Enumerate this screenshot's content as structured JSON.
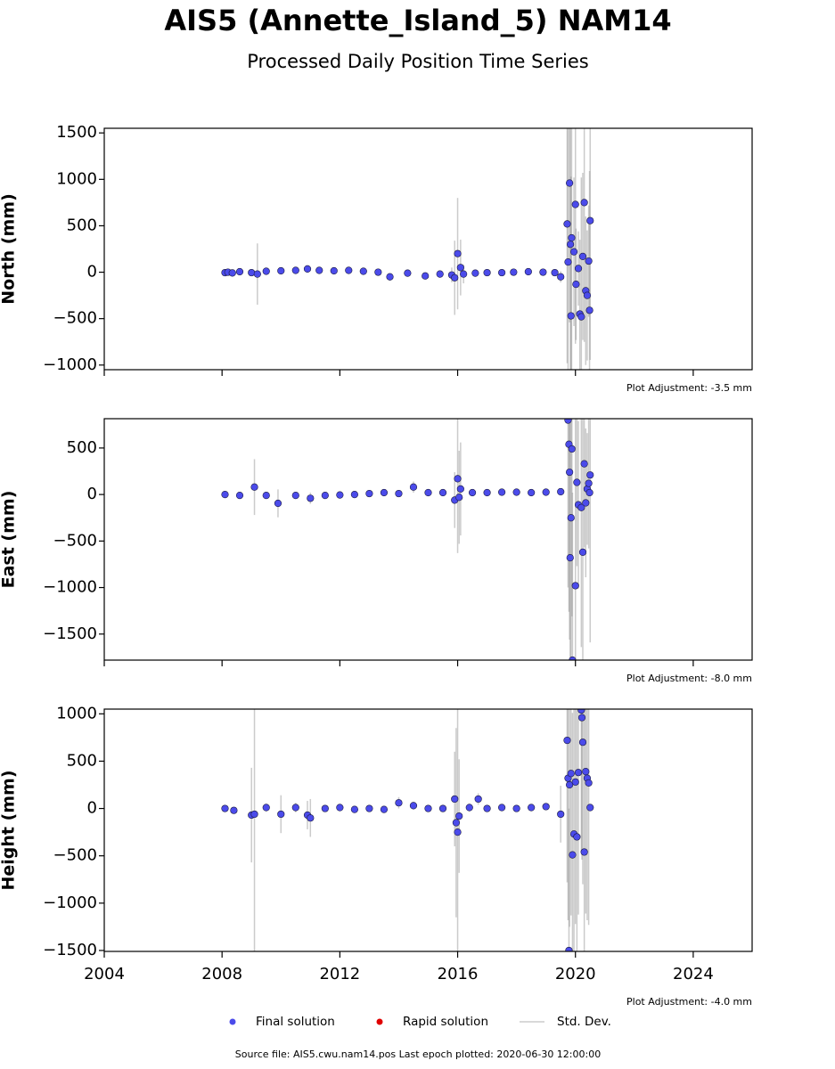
{
  "figure": {
    "title": "AIS5 (Annette_Island_5) NAM14",
    "subtitle": "Processed Daily Position Time Series",
    "legend": [
      {
        "name": "Final solution",
        "color": "#4b4bea",
        "kind": "point"
      },
      {
        "name": "Rapid solution",
        "color": "#e00000",
        "kind": "point"
      },
      {
        "name": "Std. Dev.",
        "color": "#cccccc",
        "kind": "line"
      }
    ],
    "footer": "Source file: AIS5.cwu.nam14.pos  Last epoch plotted: 2020-06-30 12:00:00"
  },
  "chart_data": [
    {
      "type": "scatter",
      "ylabel": "North (mm)",
      "annotation": "Plot Adjustment: -3.5 mm",
      "xlim": [
        2004,
        2026
      ],
      "xticks": [
        2004,
        2008,
        2012,
        2016,
        2020,
        2024
      ],
      "xticklabels": false,
      "ylim": [
        -1050,
        1550
      ],
      "yticks": [
        {
          "value": -1000,
          "label": "−1000"
        },
        {
          "value": -500,
          "label": "−500"
        },
        0,
        500,
        1000,
        1500
      ],
      "series": [
        {
          "name": "Final solution",
          "color": "#4b4bea",
          "x": [
            2008.1,
            2008.2,
            2008.35,
            2008.6,
            2009.0,
            2009.2,
            2009.5,
            2010.0,
            2010.5,
            2010.9,
            2011.3,
            2011.8,
            2012.3,
            2012.8,
            2013.3,
            2013.7,
            2014.3,
            2014.9,
            2015.4,
            2015.8,
            2015.9,
            2016.0,
            2016.1,
            2016.2,
            2016.6,
            2017.0,
            2017.5,
            2017.9,
            2018.4,
            2018.9,
            2019.3,
            2019.5,
            2019.72,
            2019.75,
            2019.8,
            2019.83,
            2019.85,
            2019.87,
            2019.95,
            2020.0,
            2020.02,
            2020.1,
            2020.15,
            2020.2,
            2020.25,
            2020.3,
            2020.35,
            2020.4,
            2020.45,
            2020.48,
            2020.5
          ],
          "values": [
            -5,
            0,
            -8,
            5,
            -5,
            -20,
            10,
            15,
            20,
            35,
            20,
            15,
            20,
            10,
            0,
            -50,
            -10,
            -40,
            -20,
            -30,
            -60,
            200,
            50,
            -20,
            -10,
            -5,
            -5,
            0,
            5,
            0,
            -5,
            -50,
            520,
            110,
            960,
            300,
            -470,
            370,
            220,
            730,
            -130,
            40,
            -450,
            -480,
            170,
            750,
            -200,
            -250,
            120,
            -410,
            555
          ],
          "errors": [
            20,
            15,
            20,
            15,
            20,
            330,
            30,
            20,
            25,
            40,
            20,
            20,
            20,
            20,
            25,
            40,
            20,
            30,
            25,
            80,
            400,
            600,
            300,
            100,
            30,
            20,
            20,
            15,
            15,
            20,
            20,
            60,
            1500,
            1500,
            1500,
            1500,
            1500,
            1500,
            800,
            1500,
            600,
            400,
            800,
            1500,
            900,
            1500,
            800,
            700,
            600,
            1500,
            1500
          ]
        }
      ]
    },
    {
      "type": "scatter",
      "ylabel": "East (mm)",
      "annotation": "Plot Adjustment: -8.0 mm",
      "xlim": [
        2004,
        2026
      ],
      "xticks": [
        2004,
        2008,
        2012,
        2016,
        2020,
        2024
      ],
      "xticklabels": false,
      "ylim": [
        -1780,
        815
      ],
      "yticks": [
        {
          "value": -1500,
          "label": "−1500"
        },
        {
          "value": -1000,
          "label": "−1000"
        },
        {
          "value": -500,
          "label": "−500"
        },
        0,
        500
      ],
      "series": [
        {
          "name": "Final solution",
          "color": "#4b4bea",
          "x": [
            2008.1,
            2008.6,
            2009.1,
            2009.5,
            2009.9,
            2010.5,
            2011.0,
            2011.5,
            2012.0,
            2012.5,
            2013.0,
            2013.5,
            2014.0,
            2014.5,
            2015.0,
            2015.5,
            2015.9,
            2016.0,
            2016.05,
            2016.1,
            2016.5,
            2017.0,
            2017.5,
            2018.0,
            2018.5,
            2019.0,
            2019.5,
            2019.75,
            2019.78,
            2019.8,
            2019.82,
            2019.85,
            2019.88,
            2019.9,
            2020.0,
            2020.05,
            2020.1,
            2020.2,
            2020.25,
            2020.3,
            2020.35,
            2020.4,
            2020.45,
            2020.48,
            2020.5
          ],
          "values": [
            0,
            -10,
            80,
            -10,
            -95,
            -10,
            -40,
            -10,
            -5,
            0,
            10,
            20,
            10,
            80,
            20,
            20,
            -60,
            170,
            -30,
            60,
            20,
            20,
            25,
            25,
            20,
            25,
            30,
            800,
            540,
            240,
            -680,
            -250,
            490,
            -1780,
            -980,
            130,
            -110,
            -140,
            -620,
            330,
            -90,
            60,
            120,
            20,
            210
          ],
          "errors": [
            20,
            20,
            300,
            20,
            150,
            20,
            60,
            20,
            20,
            20,
            20,
            20,
            20,
            60,
            20,
            20,
            300,
            800,
            500,
            500,
            20,
            20,
            20,
            20,
            20,
            20,
            20,
            1800,
            1800,
            1800,
            1800,
            1800,
            1800,
            1800,
            1800,
            900,
            900,
            1500,
            1800,
            900,
            800,
            600,
            700,
            20,
            1800
          ]
        }
      ]
    },
    {
      "type": "scatter",
      "ylabel": "Height (mm)",
      "annotation": "Plot Adjustment: -4.0 mm",
      "xlim": [
        2004,
        2026
      ],
      "xticks": [
        2004,
        2008,
        2012,
        2016,
        2020,
        2024
      ],
      "xticklabels": true,
      "ylim": [
        -1510,
        1050
      ],
      "yticks": [
        {
          "value": -1500,
          "label": "−1500"
        },
        {
          "value": -1000,
          "label": "−1000"
        },
        {
          "value": -500,
          "label": "−500"
        },
        0,
        500,
        1000
      ],
      "series": [
        {
          "name": "Final solution",
          "color": "#4b4bea",
          "x": [
            2008.1,
            2008.4,
            2009.0,
            2009.1,
            2009.5,
            2010.0,
            2010.5,
            2010.9,
            2011.0,
            2011.5,
            2012.0,
            2012.5,
            2013.0,
            2013.5,
            2014.0,
            2014.5,
            2015.0,
            2015.5,
            2015.9,
            2015.95,
            2016.0,
            2016.05,
            2016.4,
            2016.7,
            2017.0,
            2017.5,
            2018.0,
            2018.5,
            2019.0,
            2019.5,
            2019.72,
            2019.75,
            2019.78,
            2019.8,
            2019.85,
            2019.9,
            2019.95,
            2020.0,
            2020.05,
            2020.1,
            2020.2,
            2020.22,
            2020.25,
            2020.3,
            2020.35,
            2020.4,
            2020.45,
            2020.5
          ],
          "values": [
            0,
            -20,
            -70,
            -60,
            10,
            -60,
            10,
            -70,
            -100,
            0,
            10,
            -10,
            0,
            -10,
            60,
            30,
            0,
            0,
            100,
            -150,
            -250,
            -80,
            10,
            100,
            0,
            10,
            0,
            10,
            20,
            -60,
            720,
            320,
            -1500,
            250,
            370,
            -490,
            -270,
            280,
            -300,
            380,
            1040,
            960,
            700,
            -460,
            390,
            320,
            270,
            10
          ],
          "errors": [
            20,
            30,
            500,
            1500,
            40,
            200,
            50,
            150,
            200,
            30,
            30,
            30,
            30,
            30,
            60,
            40,
            30,
            40,
            500,
            1000,
            1300,
            600,
            40,
            60,
            30,
            30,
            30,
            30,
            30,
            300,
            1500,
            1500,
            1500,
            1500,
            1500,
            1500,
            1500,
            1500,
            1500,
            1500,
            1500,
            1500,
            1500,
            1500,
            1500,
            1500,
            1500,
            30
          ]
        }
      ]
    }
  ]
}
